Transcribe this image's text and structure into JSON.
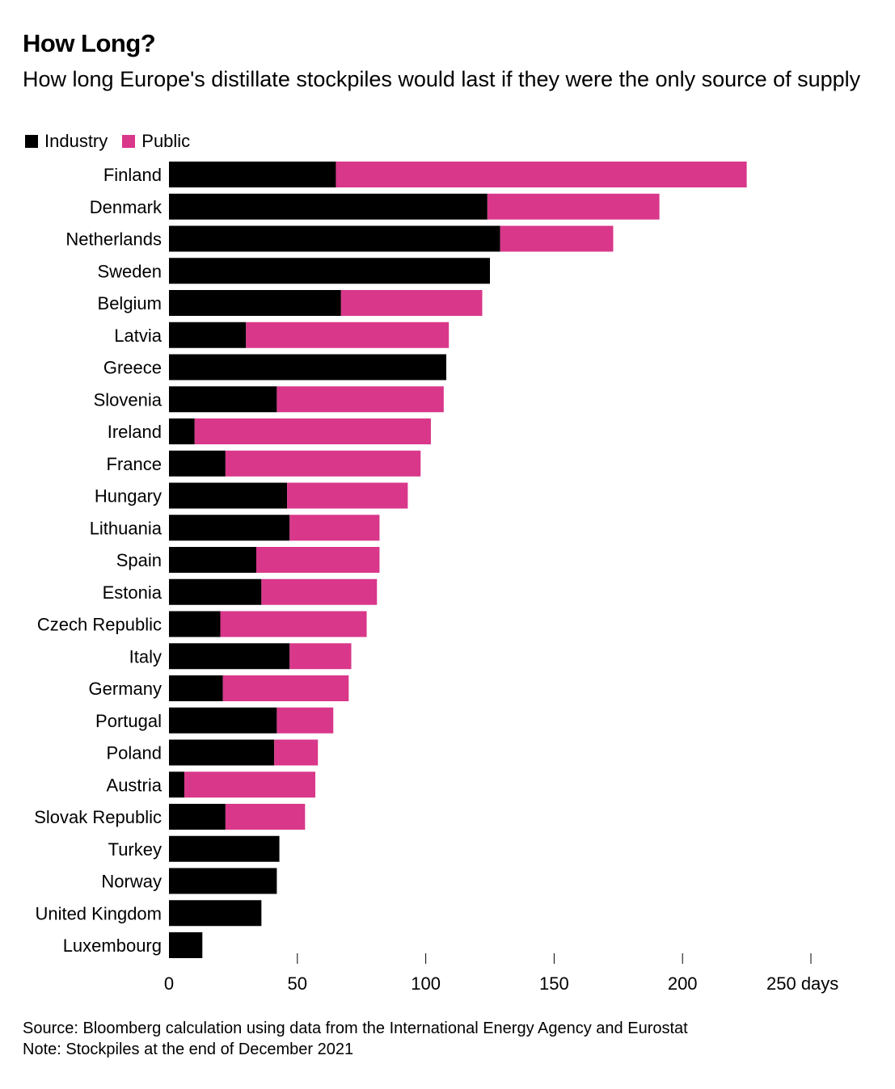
{
  "chart_data": {
    "type": "bar",
    "orientation": "horizontal",
    "stacked": true,
    "title": "How Long?",
    "subtitle": "How long Europe's distillate stockpiles would last if they were the only source of supply",
    "xlabel": "",
    "ylabel": "",
    "unit": "days",
    "xlim": [
      0,
      250
    ],
    "xticks": [
      0,
      50,
      100,
      150,
      200,
      250
    ],
    "xtick_labels": [
      "0",
      "50",
      "100",
      "150",
      "200",
      "250 days"
    ],
    "grid": false,
    "legend_position": "top-left",
    "categories": [
      "Finland",
      "Denmark",
      "Netherlands",
      "Sweden",
      "Belgium",
      "Latvia",
      "Greece",
      "Slovenia",
      "Ireland",
      "France",
      "Hungary",
      "Lithuania",
      "Spain",
      "Estonia",
      "Czech Republic",
      "Italy",
      "Germany",
      "Portugal",
      "Poland",
      "Austria",
      "Slovak Republic",
      "Turkey",
      "Norway",
      "United Kingdom",
      "Luxembourg"
    ],
    "series": [
      {
        "name": "Industry",
        "color": "#000000",
        "values": [
          65,
          124,
          129,
          125,
          67,
          30,
          108,
          42,
          10,
          22,
          46,
          47,
          34,
          36,
          20,
          47,
          21,
          42,
          41,
          6,
          22,
          43,
          42,
          36,
          13
        ]
      },
      {
        "name": "Public",
        "color": "#d9378a",
        "values": [
          160,
          67,
          44,
          0,
          55,
          79,
          0,
          65,
          92,
          76,
          47,
          35,
          48,
          45,
          57,
          24,
          49,
          22,
          17,
          51,
          31,
          0,
          0,
          0,
          0
        ]
      }
    ]
  },
  "footer": {
    "source": "Source: Bloomberg calculation using data from the International Energy Agency and Eurostat",
    "note": "Note: Stockpiles at the end of December 2021"
  }
}
